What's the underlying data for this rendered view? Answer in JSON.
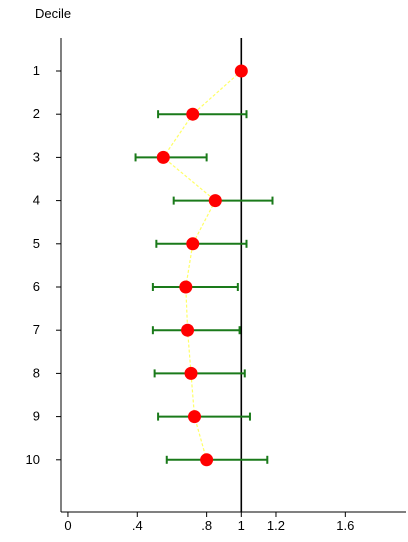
{
  "chart_data": {
    "type": "scatter",
    "ylabel": "Decile",
    "categories": [
      "1",
      "2",
      "3",
      "4",
      "5",
      "6",
      "7",
      "8",
      "9",
      "10"
    ],
    "estimates": [
      1.0,
      0.72,
      0.55,
      0.85,
      0.72,
      0.68,
      0.69,
      0.71,
      0.73,
      0.8
    ],
    "ci_lower": [
      null,
      0.52,
      0.39,
      0.61,
      0.51,
      0.49,
      0.49,
      0.5,
      0.52,
      0.57
    ],
    "ci_upper": [
      null,
      1.03,
      0.8,
      1.18,
      1.03,
      0.98,
      0.99,
      1.02,
      1.05,
      1.15
    ],
    "x_ticks": [
      0,
      0.4,
      0.8,
      1,
      1.2,
      1.6
    ],
    "x_tick_labels": [
      "0",
      ".4",
      ".8",
      "1",
      "1.2",
      "1.6"
    ],
    "xlim": [
      -0.04,
      1.95
    ],
    "reference_line": 1,
    "grid": false,
    "colors": {
      "point": "#ff0000",
      "ci": "#1a7a1a",
      "connector": "#ffff66",
      "reference": "#000000",
      "axis": "#000000"
    }
  }
}
